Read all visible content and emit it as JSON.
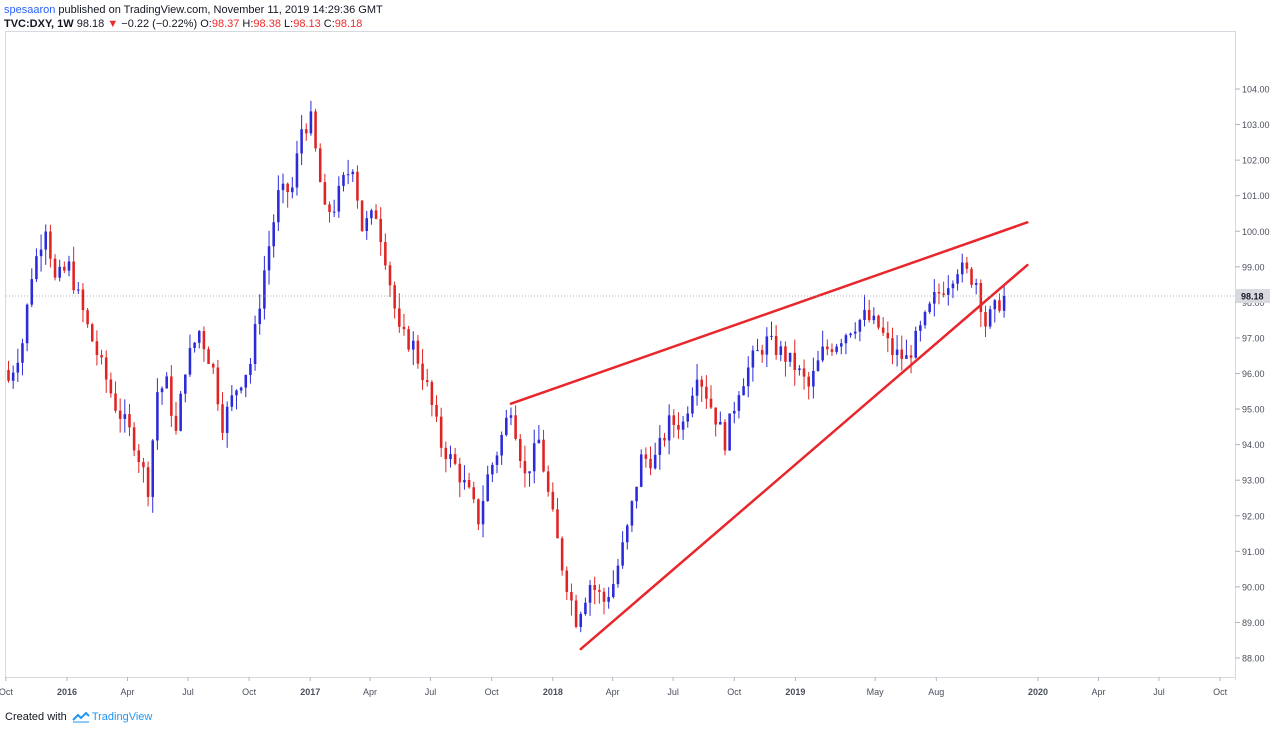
{
  "header": {
    "publisher": "spesaaron",
    "published_text": " published on TradingView.com, November 11, 2019 14:29:36 GMT",
    "ticker": "TVC:DXY, 1W",
    "last": "98.18",
    "arrow": "▼",
    "change": "−0.22 (−0.22%)",
    "o_label": "O:",
    "o_value": "98.37",
    "h_label": "H:",
    "h_value": "98.38",
    "l_label": "L:",
    "l_value": "98.13",
    "c_label": "C:",
    "c_value": "98.18"
  },
  "footer": {
    "created_with": "Created with",
    "brand": "TradingView",
    "logo_icon": "tradingview-logo-icon"
  },
  "colors": {
    "up": "#2b2bd9",
    "down": "#e02424",
    "trendline": "#e8262b",
    "last_price_tag": "#d7d9de",
    "grid": "#eef0f3"
  },
  "chart_data": {
    "type": "candlestick",
    "symbol": "TVC:DXY",
    "interval": "1W",
    "last_price_label": "98.18",
    "y_ticks": [
      "104.00",
      "103.00",
      "102.00",
      "101.00",
      "100.00",
      "99.00",
      "98.00",
      "97.00",
      "96.00",
      "95.00",
      "94.00",
      "93.00",
      "92.00",
      "91.00",
      "90.00",
      "89.00",
      "88.00"
    ],
    "x_ticks": [
      {
        "label": "Oct",
        "date": "2015-10-01",
        "bold": false
      },
      {
        "label": "2016",
        "date": "2016-01-01",
        "bold": true
      },
      {
        "label": "Apr",
        "date": "2016-04-01",
        "bold": false
      },
      {
        "label": "Jul",
        "date": "2016-07-01",
        "bold": false
      },
      {
        "label": "Oct",
        "date": "2016-10-01",
        "bold": false
      },
      {
        "label": "2017",
        "date": "2017-01-01",
        "bold": true
      },
      {
        "label": "Apr",
        "date": "2017-04-01",
        "bold": false
      },
      {
        "label": "Jul",
        "date": "2017-07-01",
        "bold": false
      },
      {
        "label": "Oct",
        "date": "2017-10-01",
        "bold": false
      },
      {
        "label": "2018",
        "date": "2018-01-01",
        "bold": true
      },
      {
        "label": "Apr",
        "date": "2018-04-01",
        "bold": false
      },
      {
        "label": "Jul",
        "date": "2018-07-01",
        "bold": false
      },
      {
        "label": "Oct",
        "date": "2018-10-01",
        "bold": false
      },
      {
        "label": "2019",
        "date": "2019-01-01",
        "bold": true
      },
      {
        "label": "May",
        "date": "2019-05-01",
        "bold": false
      },
      {
        "label": "Aug",
        "date": "2019-08-01",
        "bold": false
      },
      {
        "label": "2020",
        "date": "2020-01-01",
        "bold": true
      },
      {
        "label": "Apr",
        "date": "2020-04-01",
        "bold": false
      },
      {
        "label": "Jul",
        "date": "2020-07-01",
        "bold": false
      },
      {
        "label": "Oct",
        "date": "2020-10-01",
        "bold": false
      }
    ],
    "price_path": [
      [
        "2015-10-05",
        95.8
      ],
      [
        "2015-10-26",
        96.9
      ],
      [
        "2015-11-09",
        98.8
      ],
      [
        "2015-11-30",
        100.2
      ],
      [
        "2015-12-14",
        98.6
      ],
      [
        "2016-01-04",
        99.0
      ],
      [
        "2016-02-01",
        97.3
      ],
      [
        "2016-02-22",
        96.2
      ],
      [
        "2016-03-14",
        95.1
      ],
      [
        "2016-04-11",
        94.1
      ],
      [
        "2016-05-02",
        92.8
      ],
      [
        "2016-05-16",
        95.5
      ],
      [
        "2016-05-30",
        95.7
      ],
      [
        "2016-06-13",
        94.3
      ],
      [
        "2016-06-27",
        96.2
      ],
      [
        "2016-07-18",
        97.2
      ],
      [
        "2016-08-08",
        96.1
      ],
      [
        "2016-08-22",
        94.6
      ],
      [
        "2016-09-12",
        95.6
      ],
      [
        "2016-10-03",
        96.3
      ],
      [
        "2016-10-24",
        98.9
      ],
      [
        "2016-11-14",
        101.0
      ],
      [
        "2016-12-05",
        101.2
      ],
      [
        "2016-12-19",
        102.9
      ],
      [
        "2017-01-02",
        103.1
      ],
      [
        "2017-01-23",
        100.5
      ],
      [
        "2017-02-06",
        100.7
      ],
      [
        "2017-02-20",
        101.4
      ],
      [
        "2017-03-06",
        101.9
      ],
      [
        "2017-03-20",
        100.1
      ],
      [
        "2017-04-10",
        100.5
      ],
      [
        "2017-04-24",
        99.3
      ],
      [
        "2017-05-15",
        97.1
      ],
      [
        "2017-06-05",
        96.8
      ],
      [
        "2017-06-26",
        95.6
      ],
      [
        "2017-07-17",
        94.0
      ],
      [
        "2017-08-07",
        93.4
      ],
      [
        "2017-08-28",
        92.6
      ],
      [
        "2017-09-11",
        91.9
      ],
      [
        "2017-09-25",
        93.1
      ],
      [
        "2017-10-09",
        93.8
      ],
      [
        "2017-10-30",
        95.1
      ],
      [
        "2017-11-20",
        93.1
      ],
      [
        "2017-12-11",
        94.1
      ],
      [
        "2017-12-25",
        92.6
      ],
      [
        "2018-01-15",
        90.6
      ],
      [
        "2018-02-05",
        89.1
      ],
      [
        "2018-02-26",
        90.1
      ],
      [
        "2018-03-19",
        89.6
      ],
      [
        "2018-04-02",
        90.1
      ],
      [
        "2018-04-23",
        91.6
      ],
      [
        "2018-05-14",
        93.6
      ],
      [
        "2018-06-04",
        93.6
      ],
      [
        "2018-06-25",
        94.6
      ],
      [
        "2018-07-16",
        94.6
      ],
      [
        "2018-08-06",
        96.1
      ],
      [
        "2018-08-27",
        95.1
      ],
      [
        "2018-09-17",
        94.1
      ],
      [
        "2018-10-08",
        95.6
      ],
      [
        "2018-10-29",
        96.4
      ],
      [
        "2018-11-19",
        96.9
      ],
      [
        "2018-12-10",
        96.6
      ],
      [
        "2018-12-31",
        96.2
      ],
      [
        "2019-01-21",
        95.6
      ],
      [
        "2019-02-11",
        96.6
      ],
      [
        "2019-03-04",
        96.9
      ],
      [
        "2019-03-25",
        97.3
      ],
      [
        "2019-04-15",
        97.6
      ],
      [
        "2019-05-06",
        97.3
      ],
      [
        "2019-05-27",
        96.6
      ],
      [
        "2019-06-17",
        96.4
      ],
      [
        "2019-07-08",
        97.2
      ],
      [
        "2019-07-29",
        98.1
      ],
      [
        "2019-08-19",
        98.6
      ],
      [
        "2019-09-02",
        99.0
      ],
      [
        "2019-09-16",
        98.8
      ],
      [
        "2019-09-30",
        98.6
      ],
      [
        "2019-10-14",
        97.4
      ],
      [
        "2019-10-28",
        97.8
      ],
      [
        "2019-11-11",
        98.2
      ]
    ],
    "trendlines": [
      {
        "from": [
          "2017-10-30",
          95.15
        ],
        "to": [
          "2019-12-16",
          100.25
        ]
      },
      {
        "from": [
          "2018-02-12",
          88.25
        ],
        "to": [
          "2019-12-16",
          99.05
        ]
      }
    ]
  }
}
